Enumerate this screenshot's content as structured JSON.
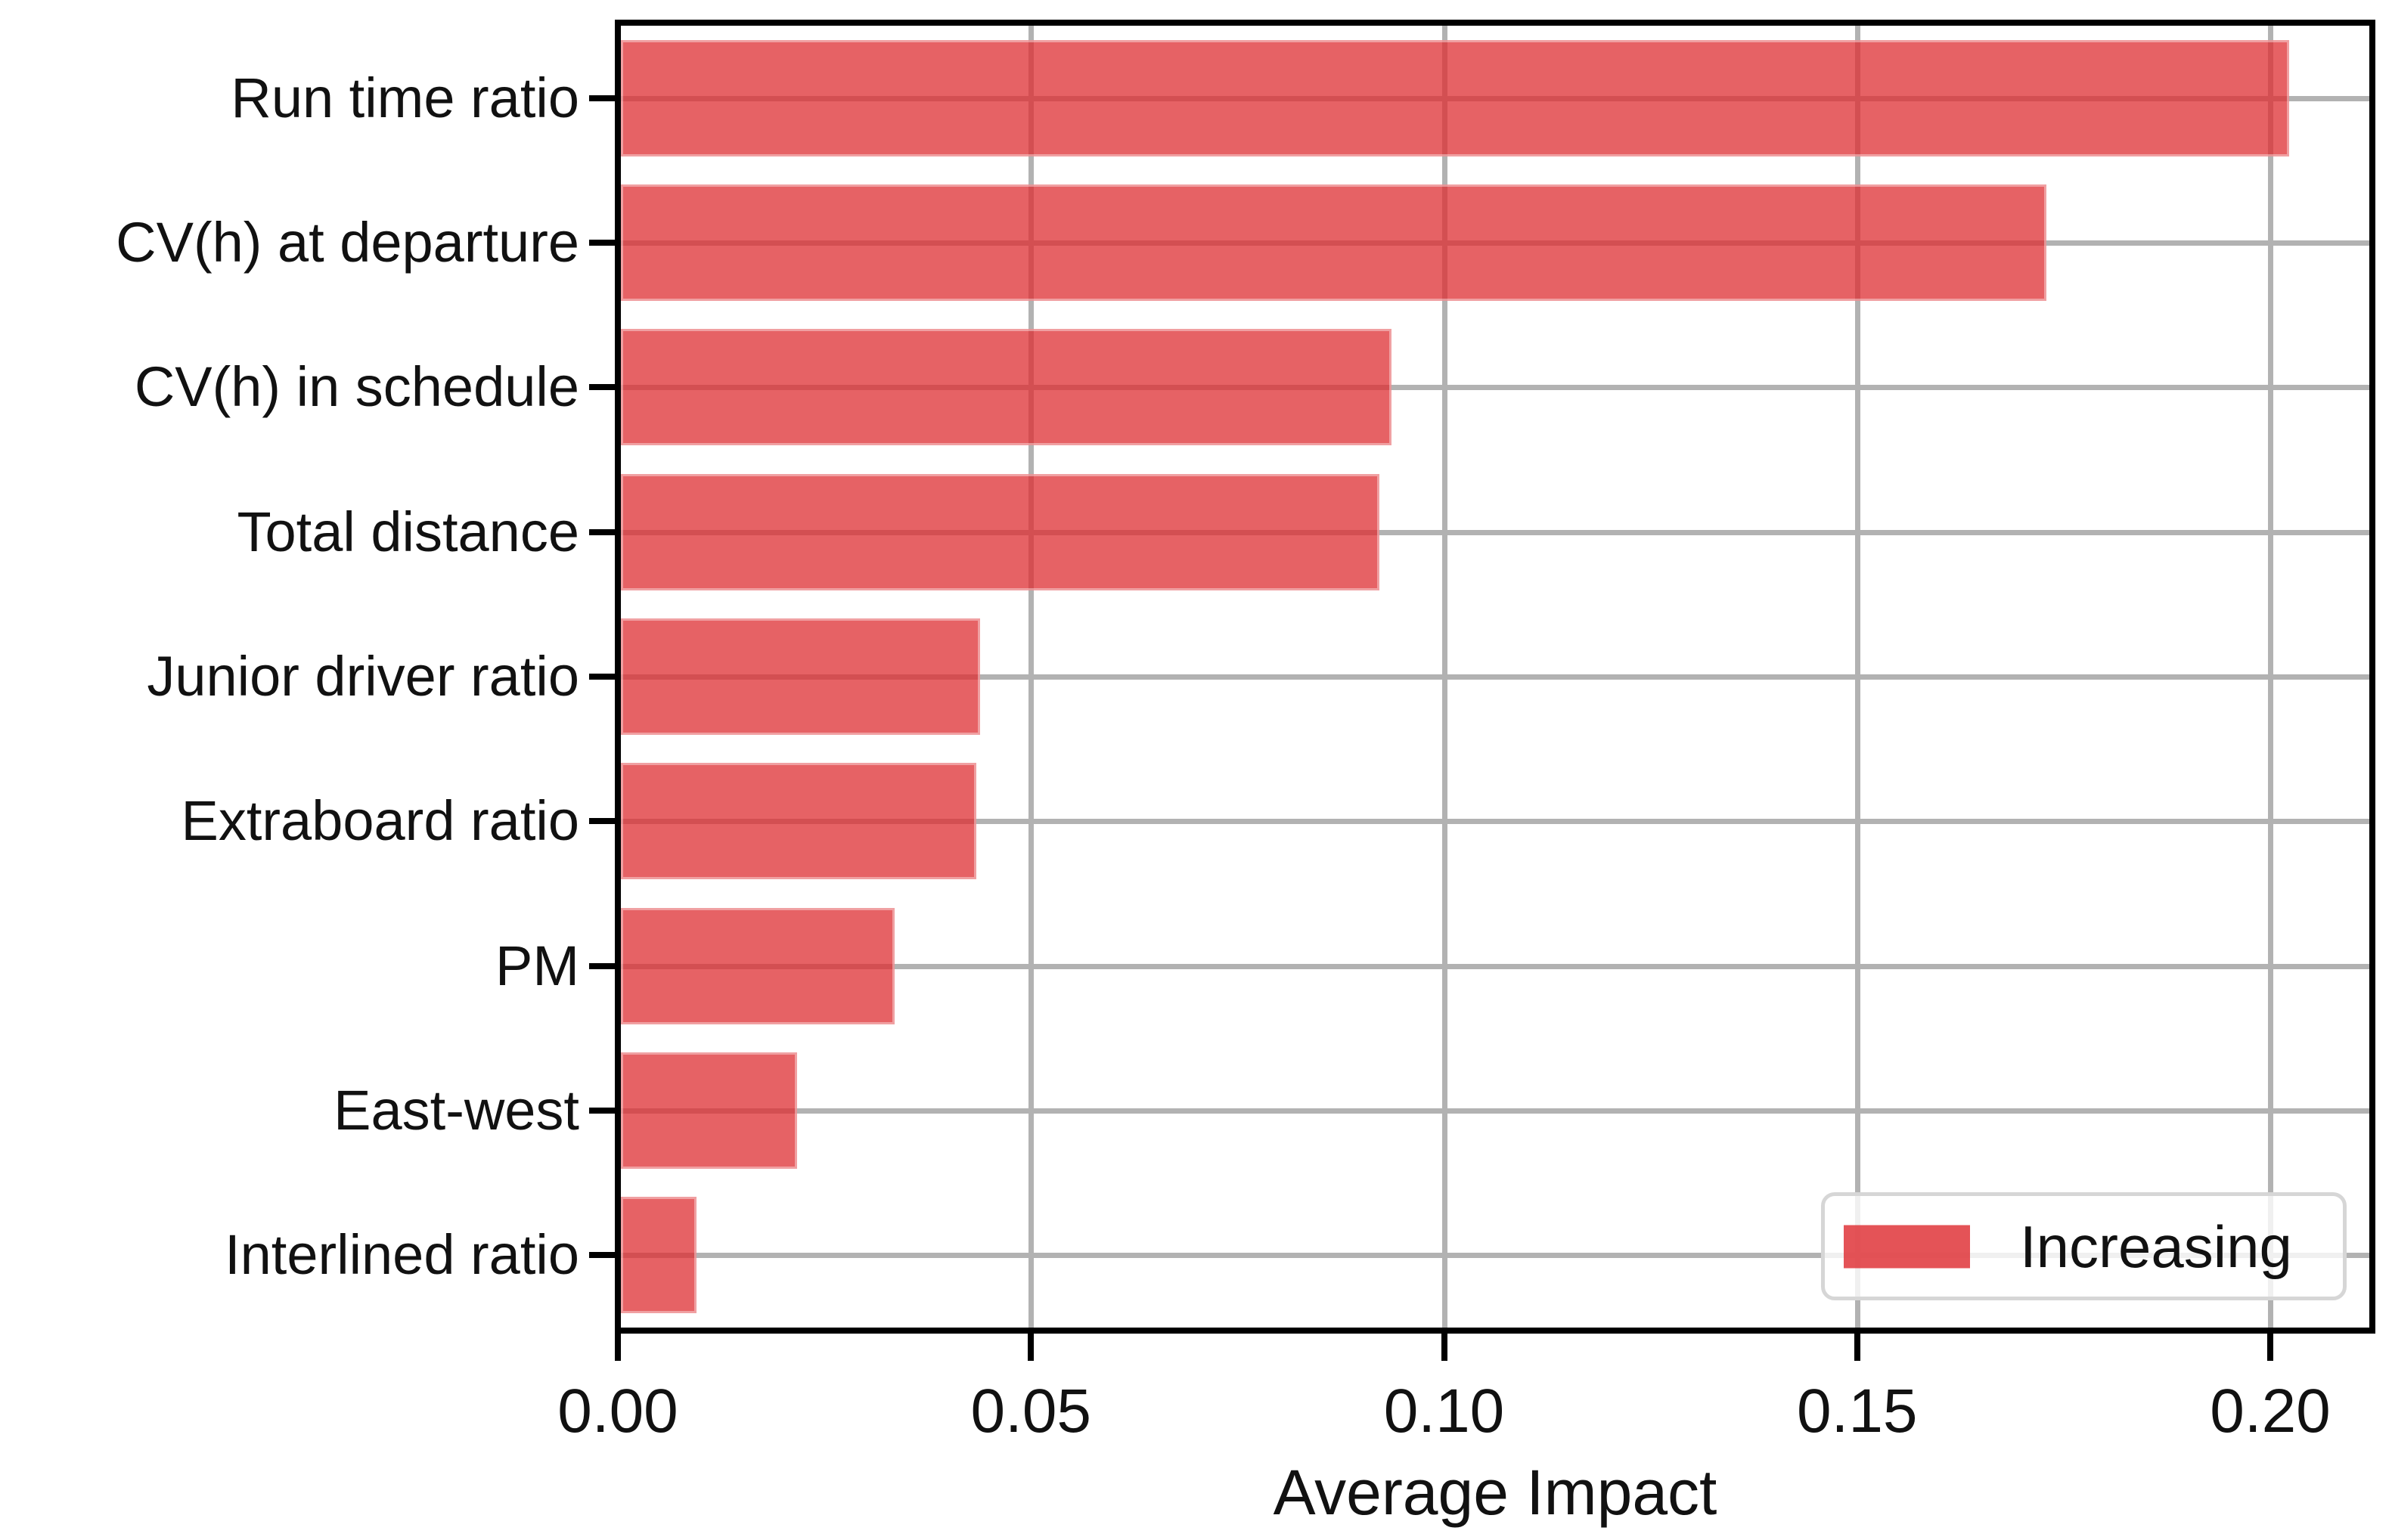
{
  "chart_data": {
    "type": "bar",
    "orientation": "horizontal",
    "title": "",
    "xlabel": "Average Impact",
    "ylabel": "",
    "categories": [
      "Run time ratio",
      "CV(h) at departure",
      "CV(h) in schedule",
      "Total distance",
      "Junior driver ratio",
      "Extraboard ratio",
      "PM",
      "East-west",
      "Interlined ratio"
    ],
    "series": [
      {
        "name": "Increasing",
        "values": [
          0.2023,
          0.1729,
          0.0936,
          0.0922,
          0.0438,
          0.0434,
          0.0335,
          0.0217,
          0.0095
        ]
      }
    ],
    "xlim": [
      0,
      0.2124
    ],
    "xticks": [
      0,
      0.05,
      0.1,
      0.15,
      0.2
    ],
    "xtick_labels": [
      "0.00",
      "0.05",
      "0.10",
      "0.15",
      "0.20"
    ],
    "grid": true,
    "legend": {
      "entries": [
        "Increasing"
      ],
      "position": "lower right"
    },
    "colors": {
      "bar_fill": "#e5615f",
      "bar_rgba": "rgba(222,45,50,0.75)",
      "gridline": "#b2b2b2",
      "spine": "#000000",
      "text": "#111111",
      "legend_border": "#d6d6d6"
    }
  }
}
